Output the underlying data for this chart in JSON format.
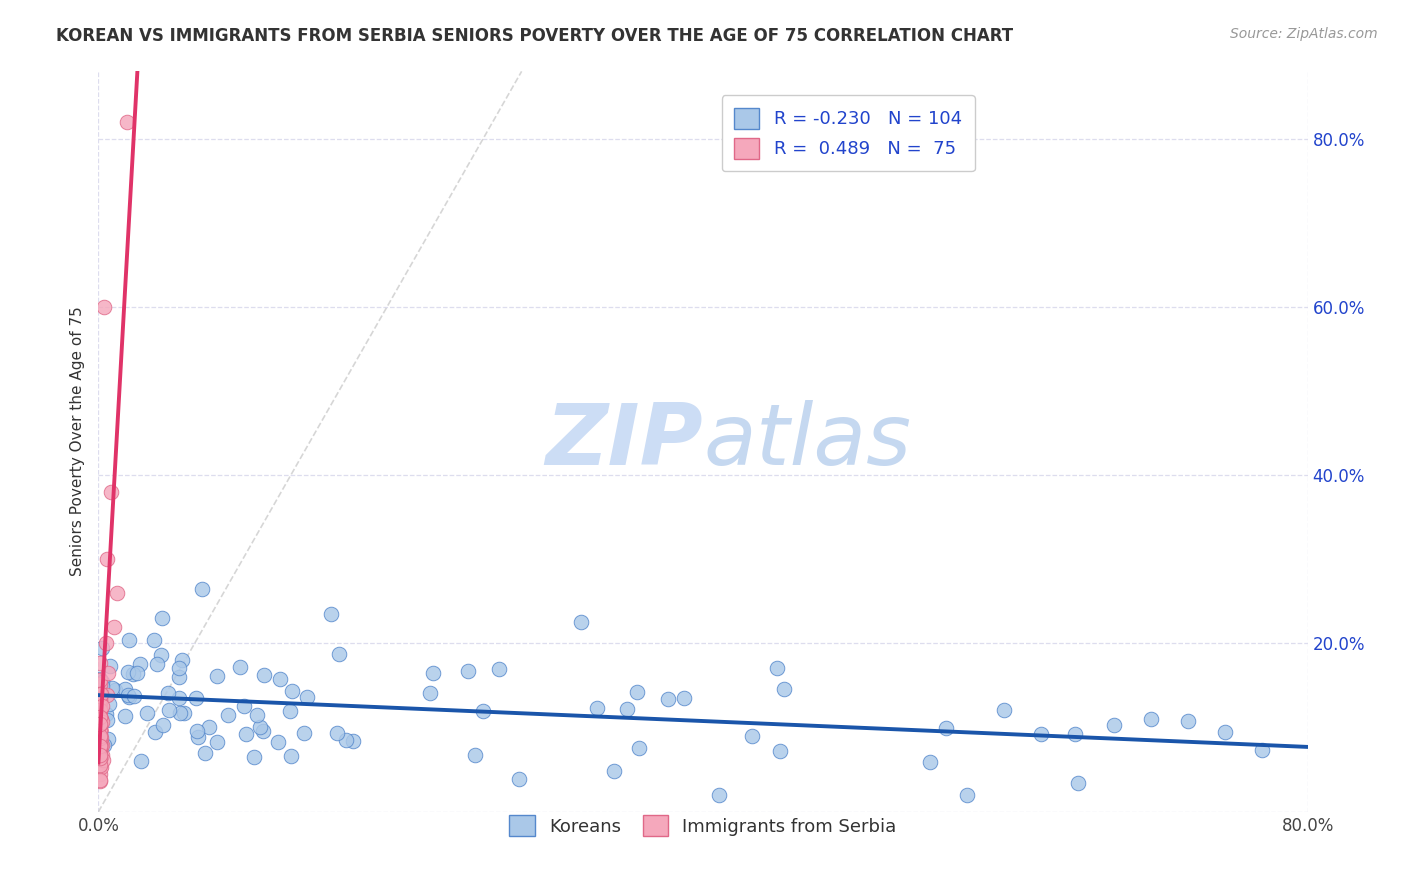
{
  "title": "KOREAN VS IMMIGRANTS FROM SERBIA SENIORS POVERTY OVER THE AGE OF 75 CORRELATION CHART",
  "source": "Source: ZipAtlas.com",
  "ylabel": "Seniors Poverty Over the Age of 75",
  "xlim": [
    0.0,
    0.8
  ],
  "ylim": [
    0.0,
    0.88
  ],
  "xticks": [
    0.0,
    0.8
  ],
  "xtick_labels": [
    "0.0%",
    "80.0%"
  ],
  "yticks": [
    0.0,
    0.2,
    0.4,
    0.6,
    0.8
  ],
  "ytick_labels_right": [
    "",
    "20.0%",
    "40.0%",
    "60.0%",
    "80.0%"
  ],
  "korean_R": -0.23,
  "korean_N": 104,
  "serbia_R": 0.489,
  "serbia_N": 75,
  "korean_color": "#aac8e8",
  "korean_edge_color": "#5588cc",
  "serbia_color": "#f5a8bc",
  "serbia_edge_color": "#e06888",
  "korean_line_color": "#1a55aa",
  "serbia_line_color": "#e03368",
  "watermark_zip_color": "#ccddf5",
  "watermark_atlas_color": "#c5d8f0",
  "legend_r_color": "#2244cc",
  "background_color": "#ffffff",
  "grid_color": "#ddddee",
  "title_fontsize": 12,
  "axis_label_fontsize": 11,
  "tick_fontsize": 12,
  "legend_fontsize": 13,
  "source_fontsize": 10
}
